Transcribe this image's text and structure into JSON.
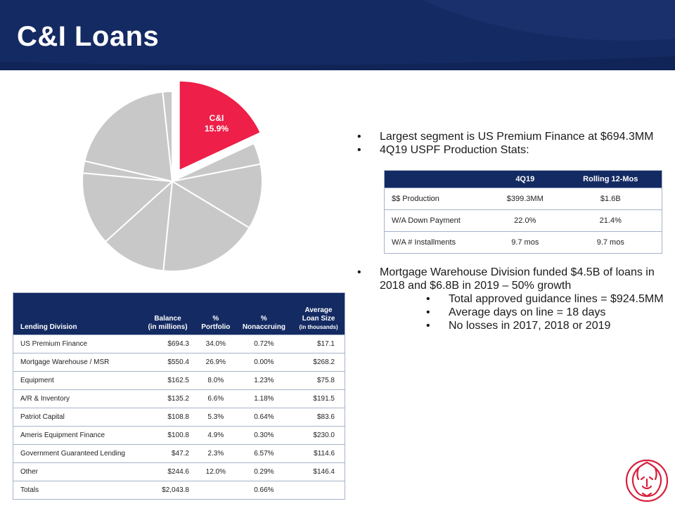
{
  "page": {
    "title": "C&I Loans"
  },
  "pie": {
    "label_line1": "C&I",
    "label_line2": "15.9%",
    "highlight_color": "#ee1f48",
    "slice_color": "#c8c8c8",
    "slices": [
      {
        "name": "C&I",
        "value": 15.9,
        "highlight": true
      },
      {
        "value": 3.4
      },
      {
        "value": 10.3
      },
      {
        "value": 15.8
      },
      {
        "value": 10.3
      },
      {
        "value": 11.6
      },
      {
        "value": 1.9
      },
      {
        "value": 17.3
      },
      {
        "value": 1.5
      }
    ]
  },
  "bullets_top": [
    "Largest segment is US Premium Finance at $694.3MM",
    "4Q19 USPF Production Stats:"
  ],
  "stats_table": {
    "headers": [
      "",
      "4Q19",
      "Rolling 12-Mos"
    ],
    "rows": [
      [
        "$$ Production",
        "$399.3MM",
        "$1.6B"
      ],
      [
        "W/A Down Payment",
        "22.0%",
        "21.4%"
      ],
      [
        "W/A # Installments",
        "9.7 mos",
        "9.7 mos"
      ]
    ]
  },
  "bullets_bottom": {
    "main": "Mortgage Warehouse Division funded $4.5B of loans in 2018 and $6.8B in 2019 – 50% growth",
    "sub": [
      "Total approved guidance lines = $924.5MM",
      "Average days on line = 18 days",
      "No losses in 2017, 2018 or 2019"
    ]
  },
  "lending_table": {
    "headers": {
      "division": "Lending Division",
      "balance_1": "Balance",
      "balance_2": "(in millions)",
      "portfolio_1": "%",
      "portfolio_2": "Portfolio",
      "nonaccruing_1": "%",
      "nonaccruing_2": "Nonaccruing",
      "avg_1": "Average",
      "avg_2": "Loan Size",
      "avg_3": "(in thousands)"
    },
    "rows": [
      [
        "US Premium Finance",
        "$694.3",
        "34.0%",
        "0.72%",
        "$17.1"
      ],
      [
        "Mortgage Warehouse / MSR",
        "$550.4",
        "26.9%",
        "0.00%",
        "$268.2"
      ],
      [
        "Equipment",
        "$162.5",
        "8.0%",
        "1.23%",
        "$75.8"
      ],
      [
        "A/R & Inventory",
        "$135.2",
        "6.6%",
        "1.18%",
        "$191.5"
      ],
      [
        "Patriot Capital",
        "$108.8",
        "5.3%",
        "0.64%",
        "$83.6"
      ],
      [
        "Ameris Equipment Finance",
        "$100.8",
        "4.9%",
        "0.30%",
        "$230.0"
      ],
      [
        "Government Guaranteed Lending",
        "$47.2",
        "2.3%",
        "6.57%",
        "$114.6"
      ],
      [
        "Other",
        "$244.6",
        "12.0%",
        "0.29%",
        "$146.4"
      ],
      [
        "Totals",
        "$2,043.8",
        "",
        "0.66%",
        ""
      ]
    ]
  },
  "colors": {
    "navy": "#142a62",
    "accent_red": "#ee1f48",
    "logo_red": "#d81e3c"
  },
  "logo": {
    "icon": "lion-head-icon"
  }
}
